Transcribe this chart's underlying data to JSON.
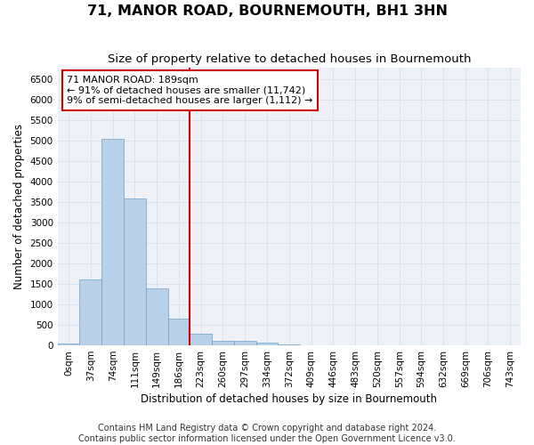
{
  "title": "71, MANOR ROAD, BOURNEMOUTH, BH1 3HN",
  "subtitle": "Size of property relative to detached houses in Bournemouth",
  "xlabel": "Distribution of detached houses by size in Bournemouth",
  "ylabel": "Number of detached properties",
  "footer1": "Contains HM Land Registry data © Crown copyright and database right 2024.",
  "footer2": "Contains public sector information licensed under the Open Government Licence v3.0.",
  "categories": [
    "0sqm",
    "37sqm",
    "74sqm",
    "111sqm",
    "149sqm",
    "186sqm",
    "223sqm",
    "260sqm",
    "297sqm",
    "334sqm",
    "372sqm",
    "409sqm",
    "446sqm",
    "483sqm",
    "520sqm",
    "557sqm",
    "594sqm",
    "632sqm",
    "669sqm",
    "706sqm",
    "743sqm"
  ],
  "values": [
    55,
    1620,
    5050,
    3600,
    1400,
    650,
    280,
    120,
    100,
    65,
    30,
    10,
    5,
    3,
    2,
    1,
    0,
    0,
    0,
    0,
    0
  ],
  "bar_color": "#b8d0e8",
  "bar_edge_color": "#6a9fcb",
  "vline_x": 5.5,
  "vline_color": "#cc0000",
  "annotation_line1": "71 MANOR ROAD: 189sqm",
  "annotation_line2": "← 91% of detached houses are smaller (11,742)",
  "annotation_line3": "9% of semi-detached houses are larger (1,112) →",
  "annotation_box_color": "#ffffff",
  "annotation_box_edge": "#cc0000",
  "ylim": [
    0,
    6800
  ],
  "yticks": [
    0,
    500,
    1000,
    1500,
    2000,
    2500,
    3000,
    3500,
    4000,
    4500,
    5000,
    5500,
    6000,
    6500
  ],
  "grid_color": "#d8e4f0",
  "title_fontsize": 11.5,
  "subtitle_fontsize": 9.5,
  "axis_label_fontsize": 8.5,
  "tick_fontsize": 7.5,
  "annotation_fontsize": 8,
  "footer_fontsize": 7
}
